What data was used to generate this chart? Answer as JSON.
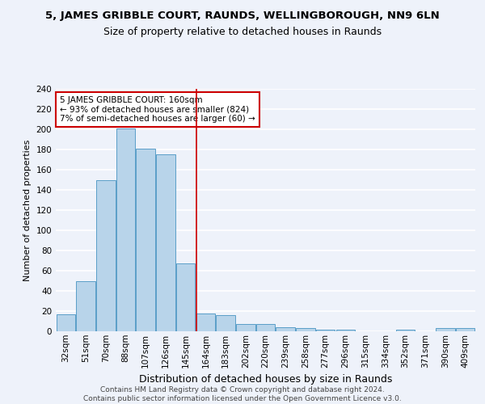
{
  "title": "5, JAMES GRIBBLE COURT, RAUNDS, WELLINGBOROUGH, NN9 6LN",
  "subtitle": "Size of property relative to detached houses in Raunds",
  "xlabel": "Distribution of detached houses by size in Raunds",
  "ylabel": "Number of detached properties",
  "categories": [
    "32sqm",
    "51sqm",
    "70sqm",
    "88sqm",
    "107sqm",
    "126sqm",
    "145sqm",
    "164sqm",
    "183sqm",
    "202sqm",
    "220sqm",
    "239sqm",
    "258sqm",
    "277sqm",
    "296sqm",
    "315sqm",
    "334sqm",
    "352sqm",
    "371sqm",
    "390sqm",
    "409sqm"
  ],
  "values": [
    17,
    50,
    150,
    201,
    181,
    175,
    67,
    18,
    16,
    7,
    7,
    4,
    3,
    2,
    2,
    0,
    0,
    2,
    0,
    3,
    3
  ],
  "bar_color": "#b8d4ea",
  "bar_edge_color": "#5a9ec8",
  "highlight_index": 7,
  "highlight_color": "#cc0000",
  "annotation_line1": "5 JAMES GRIBBLE COURT: 160sqm",
  "annotation_line2": "← 93% of detached houses are smaller (824)",
  "annotation_line3": "7% of semi-detached houses are larger (60) →",
  "annotation_box_color": "#ffffff",
  "annotation_box_edge": "#cc0000",
  "ylim": [
    0,
    240
  ],
  "yticks": [
    0,
    20,
    40,
    60,
    80,
    100,
    120,
    140,
    160,
    180,
    200,
    220,
    240
  ],
  "footer1": "Contains HM Land Registry data © Crown copyright and database right 2024.",
  "footer2": "Contains public sector information licensed under the Open Government Licence v3.0.",
  "background_color": "#eef2fa",
  "grid_color": "#ffffff",
  "title_fontsize": 9.5,
  "subtitle_fontsize": 9,
  "xlabel_fontsize": 9,
  "ylabel_fontsize": 8,
  "tick_fontsize": 7.5,
  "footer_fontsize": 6.5
}
